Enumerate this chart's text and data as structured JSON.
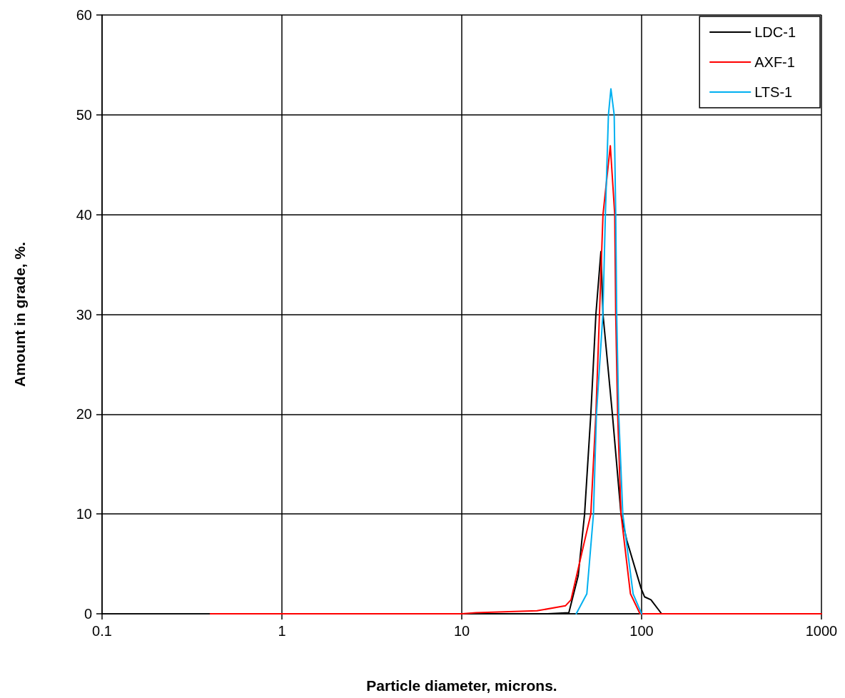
{
  "chart_data": {
    "type": "line",
    "xlabel": "Particle diameter, microns.",
    "ylabel": "Amount in grade, %.",
    "log": "x",
    "xlim": [
      0.1,
      1000
    ],
    "xticks": [
      0.1,
      1,
      10,
      100,
      1000
    ],
    "ylim": [
      0,
      60
    ],
    "yticks": [
      0,
      10,
      20,
      30,
      40,
      50,
      60
    ],
    "grid": true,
    "legend": "top right",
    "marker": "none",
    "line_style": "solid",
    "series": [
      {
        "name": "LDC-1",
        "color": "#000000",
        "x": [
          0.4,
          10,
          30,
          39.4,
          44.4,
          48.2,
          52.2,
          55.7,
          59.4,
          61.0,
          68.8,
          76.8,
          82.6,
          99.1,
          103.8,
          112.7,
          129.2,
          1000
        ],
        "values": [
          0,
          0,
          0,
          0.1,
          3.8,
          10,
          20,
          30,
          36.3,
          30,
          20,
          10,
          7.4,
          2.6,
          1.7,
          1.4,
          0,
          0
        ]
      },
      {
        "name": "AXF-1",
        "color": "#ff0000",
        "x": [
          0.4,
          10,
          12,
          26.2,
          37.7,
          40.5,
          52.2,
          55.7,
          58.3,
          61,
          67,
          70.9,
          71.8,
          73.6,
          76.8,
          86.7,
          98,
          1000
        ],
        "values": [
          0,
          0,
          0.1,
          0.3,
          0.8,
          1.4,
          10,
          20,
          30,
          40,
          46.9,
          40,
          30,
          20,
          10,
          2,
          0,
          0
        ]
      },
      {
        "name": "LTS-1",
        "color": "#00b0f0",
        "x": [
          43.3,
          49.6,
          54.0,
          56.1,
          60.9,
          62.9,
          65.4,
          67.5,
          70.4,
          71.8,
          72.7,
          74.6,
          78.6,
          89.7,
          100
        ],
        "values": [
          0,
          2,
          10,
          20,
          30,
          40,
          50,
          52.6,
          50,
          40,
          30,
          20,
          10,
          2,
          0
        ]
      }
    ]
  }
}
